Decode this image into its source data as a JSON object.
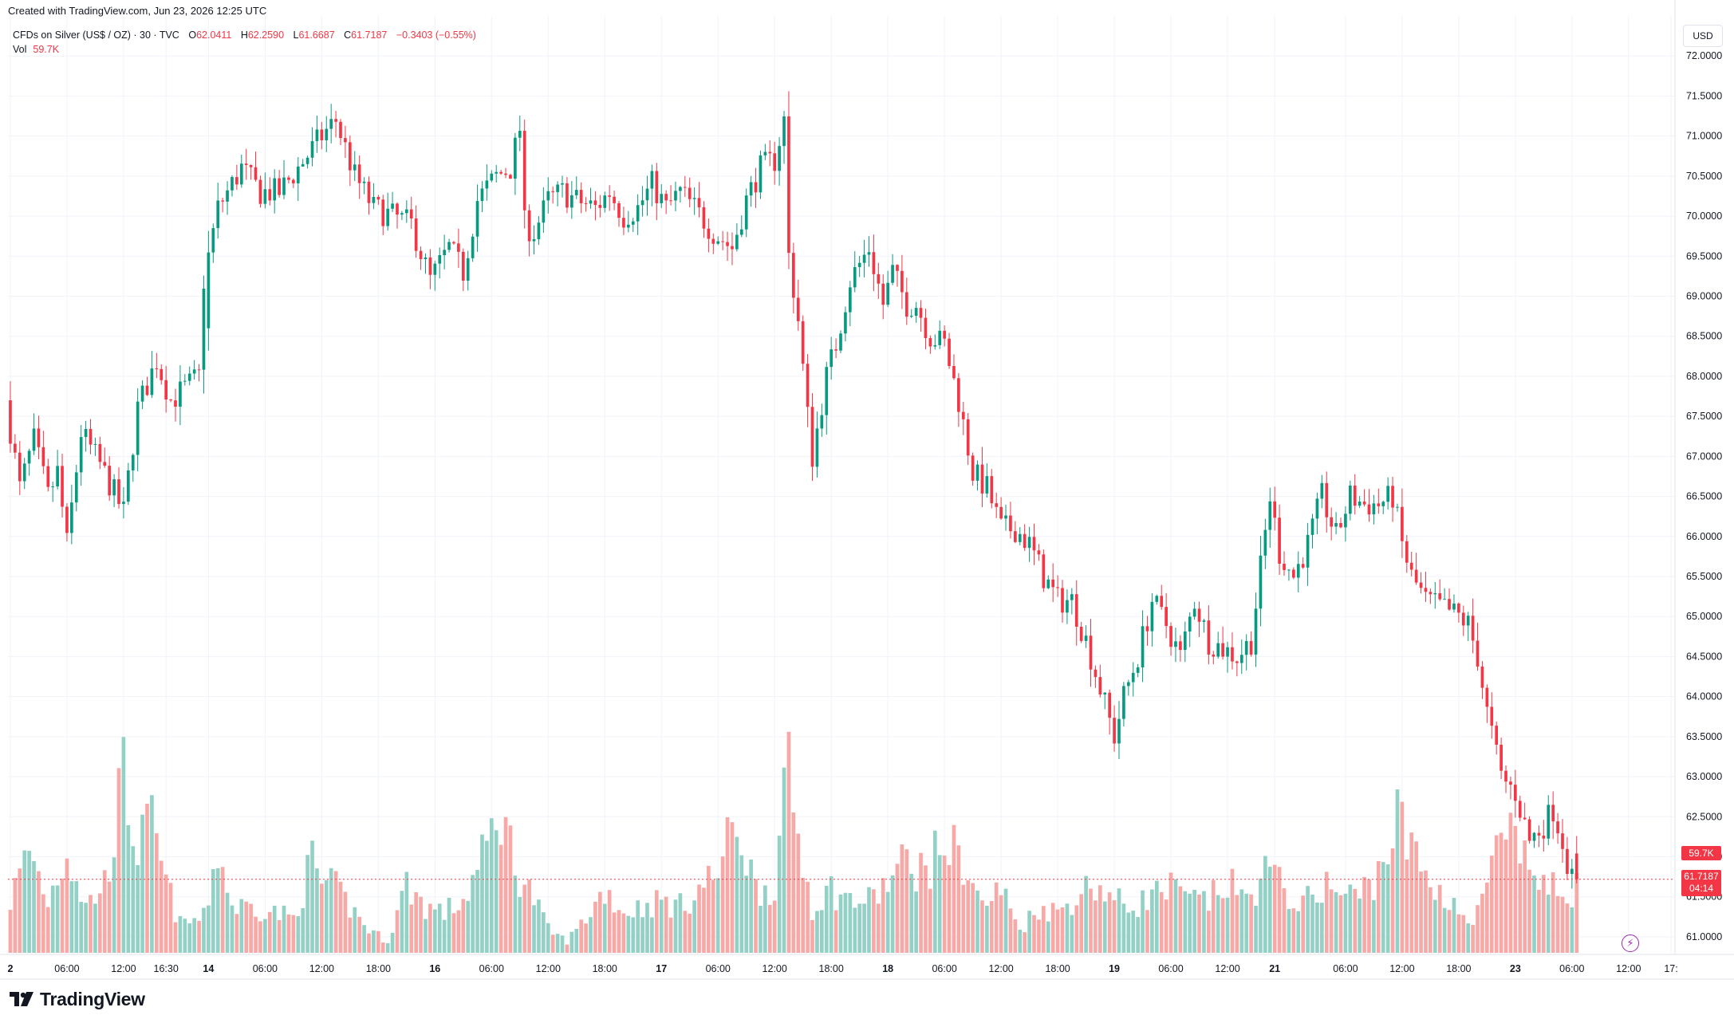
{
  "header": {
    "created_note": "Created with TradingView.com, Jun 23, 2026 12:25 UTC"
  },
  "legend": {
    "symbol": "CFDs on Silver (US$ / OZ) · 30 · TVC",
    "o_label": "O",
    "o_value": "62.0411",
    "h_label": "H",
    "h_value": "62.2590",
    "l_label": "L",
    "l_value": "61.6687",
    "c_label": "C",
    "c_value": "61.7187",
    "change": "−0.3403 (−0.55%)",
    "vol_label": "Vol",
    "vol_value": "59.7K"
  },
  "axis": {
    "currency": "USD",
    "last_price": "61.7187",
    "countdown": "04:14",
    "last_volume": "59.7K"
  },
  "brand": {
    "name": "TradingView"
  },
  "colors": {
    "up": "#089981",
    "down": "#f23645",
    "vol_up": "#93d1c7",
    "vol_down": "#f7a9a7",
    "grid": "#f0f3fa",
    "text": "#131722"
  },
  "chart_data": {
    "type": "candlestick",
    "title": "CFDs on Silver (US$ / OZ) · 30 · TVC",
    "currency": "USD",
    "ylim": [
      60.8,
      72.5
    ],
    "y_ticks": [
      "72.0000",
      "71.5000",
      "71.0000",
      "70.5000",
      "70.0000",
      "69.5000",
      "69.0000",
      "68.5000",
      "68.0000",
      "67.5000",
      "67.0000",
      "66.5000",
      "66.0000",
      "65.5000",
      "65.0000",
      "64.5000",
      "64.0000",
      "63.5000",
      "63.0000",
      "62.5000",
      "62.0000",
      "61.5000",
      "61.0000"
    ],
    "x_ticks": [
      {
        "label": "2",
        "bar": 0,
        "bold": true
      },
      {
        "label": "06:00",
        "bar": 12
      },
      {
        "label": "12:00",
        "bar": 24
      },
      {
        "label": "16:30",
        "bar": 33
      },
      {
        "label": "14",
        "bar": 42,
        "bold": true
      },
      {
        "label": "06:00",
        "bar": 54
      },
      {
        "label": "12:00",
        "bar": 66
      },
      {
        "label": "18:00",
        "bar": 78
      },
      {
        "label": "16",
        "bar": 90,
        "bold": true
      },
      {
        "label": "06:00",
        "bar": 102
      },
      {
        "label": "12:00",
        "bar": 114
      },
      {
        "label": "18:00",
        "bar": 126
      },
      {
        "label": "17",
        "bar": 138,
        "bold": true
      },
      {
        "label": "06:00",
        "bar": 150
      },
      {
        "label": "12:00",
        "bar": 162
      },
      {
        "label": "18:00",
        "bar": 174
      },
      {
        "label": "18",
        "bar": 186,
        "bold": true
      },
      {
        "label": "06:00",
        "bar": 198
      },
      {
        "label": "12:00",
        "bar": 210
      },
      {
        "label": "18:00",
        "bar": 222
      },
      {
        "label": "19",
        "bar": 234,
        "bold": true
      },
      {
        "label": "06:00",
        "bar": 246
      },
      {
        "label": "12:00",
        "bar": 258
      },
      {
        "label": "21",
        "bar": 268,
        "bold": true
      },
      {
        "label": "06:00",
        "bar": 283
      },
      {
        "label": "12:00",
        "bar": 295
      },
      {
        "label": "18:00",
        "bar": 307
      },
      {
        "label": "23",
        "bar": 319,
        "bold": true
      },
      {
        "label": "06:00",
        "bar": 331
      },
      {
        "label": "12:00",
        "bar": 343
      },
      {
        "label": "17:",
        "bar": 352
      }
    ],
    "gaps_after_bar": [
      41
    ],
    "series_anchors": [
      [
        0,
        67.7
      ],
      [
        3,
        66.6
      ],
      [
        6,
        67.2
      ],
      [
        9,
        66.5
      ],
      [
        11,
        66.8
      ],
      [
        13,
        65.9
      ],
      [
        16,
        67.3
      ],
      [
        20,
        66.9
      ],
      [
        25,
        66.3
      ],
      [
        28,
        67.6
      ],
      [
        32,
        68.2
      ],
      [
        35,
        67.7
      ],
      [
        41,
        68.0
      ],
      [
        42,
        69.2
      ],
      [
        45,
        70.1
      ],
      [
        50,
        70.6
      ],
      [
        54,
        70.3
      ],
      [
        58,
        70.3
      ],
      [
        62,
        70.6
      ],
      [
        67,
        71.0
      ],
      [
        70,
        71.2
      ],
      [
        74,
        70.5
      ],
      [
        78,
        70.1
      ],
      [
        82,
        70.0
      ],
      [
        86,
        69.9
      ],
      [
        90,
        69.2
      ],
      [
        94,
        69.6
      ],
      [
        97,
        69.3
      ],
      [
        100,
        70.2
      ],
      [
        104,
        70.5
      ],
      [
        107,
        70.6
      ],
      [
        109,
        71.1
      ],
      [
        110,
        69.9
      ],
      [
        112,
        69.8
      ],
      [
        115,
        70.2
      ],
      [
        118,
        70.3
      ],
      [
        121,
        70.2
      ],
      [
        125,
        70.1
      ],
      [
        128,
        70.3
      ],
      [
        131,
        70.0
      ],
      [
        134,
        70.1
      ],
      [
        137,
        70.4
      ],
      [
        140,
        70.1
      ],
      [
        143,
        70.3
      ],
      [
        146,
        70.1
      ],
      [
        150,
        69.8
      ],
      [
        154,
        69.6
      ],
      [
        157,
        70.2
      ],
      [
        160,
        70.6
      ],
      [
        163,
        70.7
      ],
      [
        165,
        71.2
      ],
      [
        166,
        69.5
      ],
      [
        168,
        68.7
      ],
      [
        170,
        67.5
      ],
      [
        171,
        67.0
      ],
      [
        174,
        68.0
      ],
      [
        176,
        68.4
      ],
      [
        179,
        69.2
      ],
      [
        183,
        69.6
      ],
      [
        186,
        68.9
      ],
      [
        188,
        69.3
      ],
      [
        191,
        68.9
      ],
      [
        193,
        68.9
      ],
      [
        196,
        68.5
      ],
      [
        199,
        68.4
      ],
      [
        202,
        67.7
      ],
      [
        205,
        66.8
      ],
      [
        208,
        66.6
      ],
      [
        211,
        66.1
      ],
      [
        214,
        66.1
      ],
      [
        217,
        65.9
      ],
      [
        220,
        65.5
      ],
      [
        223,
        65.2
      ],
      [
        226,
        65.2
      ],
      [
        229,
        64.7
      ],
      [
        232,
        64.1
      ],
      [
        235,
        63.5
      ],
      [
        237,
        64.0
      ],
      [
        240,
        64.5
      ],
      [
        243,
        65.2
      ],
      [
        246,
        64.9
      ],
      [
        249,
        64.5
      ],
      [
        252,
        65.2
      ],
      [
        255,
        64.7
      ],
      [
        258,
        64.6
      ],
      [
        261,
        64.5
      ],
      [
        264,
        64.7
      ],
      [
        266,
        65.6
      ],
      [
        268,
        66.5
      ],
      [
        270,
        65.8
      ],
      [
        273,
        65.5
      ],
      [
        276,
        65.9
      ],
      [
        279,
        66.5
      ],
      [
        282,
        66.0
      ],
      [
        285,
        66.5
      ],
      [
        288,
        66.4
      ],
      [
        291,
        66.4
      ],
      [
        294,
        66.5
      ],
      [
        296,
        65.9
      ],
      [
        298,
        65.5
      ],
      [
        301,
        65.2
      ],
      [
        305,
        65.1
      ],
      [
        308,
        65.0
      ],
      [
        310,
        64.9
      ],
      [
        312,
        64.5
      ],
      [
        314,
        63.8
      ],
      [
        317,
        63.0
      ],
      [
        320,
        62.8
      ],
      [
        323,
        62.2
      ],
      [
        326,
        62.4
      ],
      [
        328,
        62.6
      ],
      [
        330,
        62.2
      ],
      [
        332,
        61.7
      ]
    ],
    "volume_anchors": [
      [
        0,
        45
      ],
      [
        4,
        90
      ],
      [
        8,
        45
      ],
      [
        12,
        90
      ],
      [
        16,
        40
      ],
      [
        20,
        60
      ],
      [
        24,
        150
      ],
      [
        27,
        90
      ],
      [
        30,
        110
      ],
      [
        33,
        60
      ],
      [
        36,
        25
      ],
      [
        41,
        30
      ],
      [
        44,
        90
      ],
      [
        47,
        40
      ],
      [
        52,
        40
      ],
      [
        56,
        35
      ],
      [
        60,
        30
      ],
      [
        64,
        80
      ],
      [
        66,
        60
      ],
      [
        69,
        55
      ],
      [
        72,
        40
      ],
      [
        76,
        20
      ],
      [
        80,
        10
      ],
      [
        84,
        60
      ],
      [
        88,
        40
      ],
      [
        92,
        35
      ],
      [
        96,
        45
      ],
      [
        100,
        80
      ],
      [
        104,
        125
      ],
      [
        107,
        75
      ],
      [
        110,
        55
      ],
      [
        114,
        20
      ],
      [
        118,
        10
      ],
      [
        122,
        30
      ],
      [
        126,
        55
      ],
      [
        130,
        35
      ],
      [
        134,
        40
      ],
      [
        138,
        45
      ],
      [
        142,
        40
      ],
      [
        146,
        55
      ],
      [
        150,
        70
      ],
      [
        154,
        115
      ],
      [
        158,
        55
      ],
      [
        162,
        60
      ],
      [
        165,
        155
      ],
      [
        167,
        100
      ],
      [
        170,
        40
      ],
      [
        174,
        55
      ],
      [
        178,
        45
      ],
      [
        182,
        45
      ],
      [
        186,
        60
      ],
      [
        190,
        80
      ],
      [
        194,
        70
      ],
      [
        198,
        95
      ],
      [
        202,
        80
      ],
      [
        206,
        40
      ],
      [
        210,
        55
      ],
      [
        214,
        20
      ],
      [
        218,
        40
      ],
      [
        222,
        35
      ],
      [
        226,
        50
      ],
      [
        230,
        60
      ],
      [
        234,
        45
      ],
      [
        238,
        40
      ],
      [
        242,
        50
      ],
      [
        246,
        55
      ],
      [
        250,
        45
      ],
      [
        254,
        45
      ],
      [
        258,
        60
      ],
      [
        262,
        45
      ],
      [
        266,
        70
      ],
      [
        270,
        55
      ],
      [
        274,
        40
      ],
      [
        278,
        60
      ],
      [
        282,
        50
      ],
      [
        286,
        50
      ],
      [
        290,
        70
      ],
      [
        294,
        115
      ],
      [
        298,
        80
      ],
      [
        302,
        55
      ],
      [
        306,
        45
      ],
      [
        310,
        20
      ],
      [
        314,
        80
      ],
      [
        318,
        95
      ],
      [
        322,
        75
      ],
      [
        326,
        55
      ],
      [
        330,
        50
      ],
      [
        332,
        60
      ]
    ],
    "last_bar": {
      "open": 62.0411,
      "high": 62.259,
      "low": 61.6687,
      "close": 61.7187,
      "volume": "59.7K"
    }
  }
}
